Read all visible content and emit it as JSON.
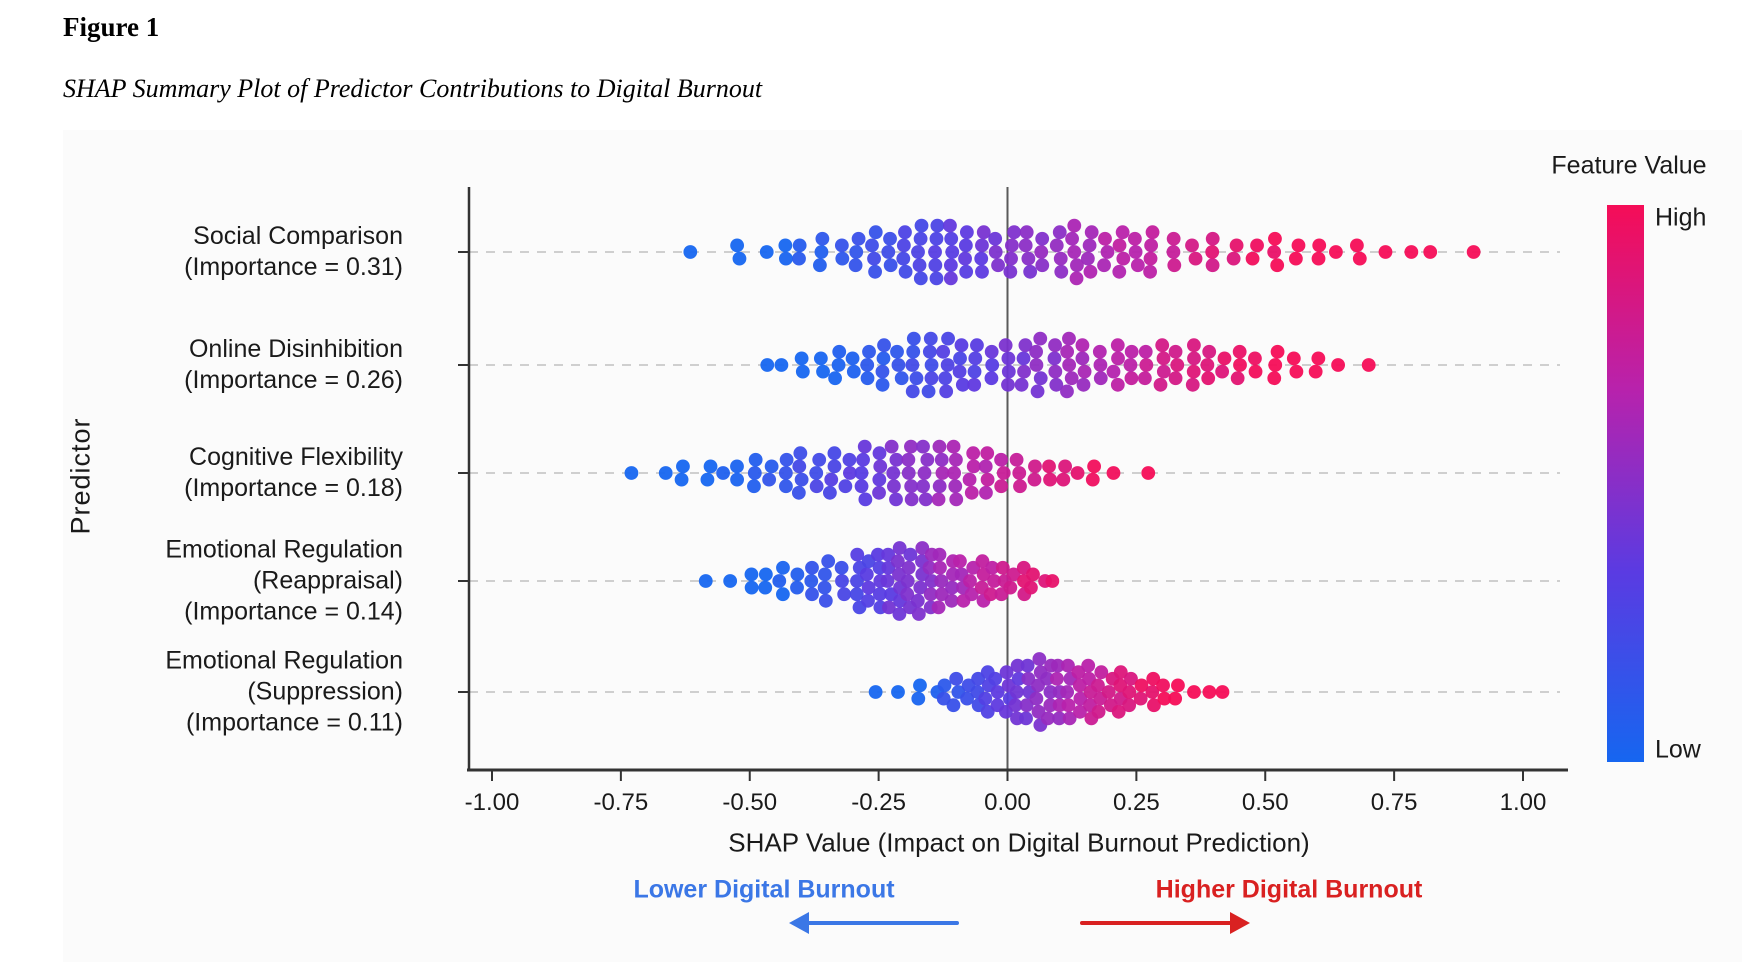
{
  "page": {
    "figure_label": "Figure 1",
    "figure_caption": "SHAP Summary Plot of Predictor Contributions to Digital Burnout"
  },
  "chart_data": {
    "type": "scatter",
    "subtype": "shap-beeswarm-summary",
    "title": "",
    "xlabel": "SHAP Value (Impact on Digital Burnout Prediction)",
    "ylabel": "Predictor",
    "xlim": [
      -1.05,
      1.07
    ],
    "x_ticks": [
      "-1.00",
      "-0.75",
      "-0.50",
      "-0.25",
      "0.00",
      "0.25",
      "0.50",
      "0.75",
      "1.00"
    ],
    "x_tick_values": [
      -1.0,
      -0.75,
      -0.5,
      -0.25,
      0.0,
      0.25,
      0.5,
      0.75,
      1.0
    ],
    "grid": "dashed horizontal line per predictor row",
    "zero_reference_line": 0.0,
    "colorbar": {
      "title": "Feature Value",
      "high_label": "High",
      "low_label": "Low",
      "high_color": "#F50D57",
      "mid_high_color": "#B822AC",
      "mid_low_color": "#5A3BE2",
      "low_color": "#1666F0"
    },
    "annotations": [
      {
        "text": "Lower Digital Burnout",
        "color": "#3B77E6",
        "direction": "left"
      },
      {
        "text": "Higher Digital Burnout",
        "color": "#D92121",
        "direction": "right"
      }
    ],
    "rows": [
      {
        "name": "Social Comparison",
        "importance": 0.31,
        "label_lines": [
          "Social Comparison",
          "(Importance = 0.31)"
        ],
        "shap_range": [
          -0.62,
          0.9
        ],
        "color_domain": [
          -0.45,
          0.55
        ],
        "columns": [
          [
            -0.62,
            1
          ],
          [
            -0.52,
            2
          ],
          [
            -0.47,
            1
          ],
          [
            -0.43,
            2
          ],
          [
            -0.4,
            2
          ],
          [
            -0.36,
            3
          ],
          [
            -0.32,
            2
          ],
          [
            -0.29,
            3
          ],
          [
            -0.26,
            4
          ],
          [
            -0.23,
            3
          ],
          [
            -0.2,
            4
          ],
          [
            -0.17,
            5
          ],
          [
            -0.14,
            5
          ],
          [
            -0.11,
            5
          ],
          [
            -0.08,
            4
          ],
          [
            -0.05,
            4
          ],
          [
            -0.02,
            3
          ],
          [
            0.01,
            4
          ],
          [
            0.04,
            4
          ],
          [
            0.07,
            3
          ],
          [
            0.1,
            4
          ],
          [
            0.13,
            5
          ],
          [
            0.16,
            4
          ],
          [
            0.19,
            3
          ],
          [
            0.22,
            4
          ],
          [
            0.25,
            3
          ],
          [
            0.28,
            4
          ],
          [
            0.32,
            3
          ],
          [
            0.36,
            2
          ],
          [
            0.4,
            3
          ],
          [
            0.44,
            2
          ],
          [
            0.48,
            2
          ],
          [
            0.52,
            3
          ],
          [
            0.56,
            2
          ],
          [
            0.6,
            2
          ],
          [
            0.64,
            1
          ],
          [
            0.68,
            2
          ],
          [
            0.73,
            1
          ],
          [
            0.78,
            1
          ],
          [
            0.82,
            1
          ],
          [
            0.9,
            1
          ]
        ]
      },
      {
        "name": "Online Disinhibition",
        "importance": 0.26,
        "label_lines": [
          "Online Disinhibition",
          "(Importance = 0.26)"
        ],
        "shap_range": [
          -0.47,
          0.7
        ],
        "color_domain": [
          -0.35,
          0.5
        ],
        "columns": [
          [
            -0.47,
            1
          ],
          [
            -0.44,
            1
          ],
          [
            -0.4,
            2
          ],
          [
            -0.36,
            2
          ],
          [
            -0.33,
            3
          ],
          [
            -0.3,
            2
          ],
          [
            -0.27,
            3
          ],
          [
            -0.24,
            4
          ],
          [
            -0.21,
            3
          ],
          [
            -0.18,
            5
          ],
          [
            -0.15,
            5
          ],
          [
            -0.12,
            5
          ],
          [
            -0.09,
            4
          ],
          [
            -0.06,
            4
          ],
          [
            -0.03,
            3
          ],
          [
            0.0,
            4
          ],
          [
            0.03,
            4
          ],
          [
            0.06,
            5
          ],
          [
            0.09,
            4
          ],
          [
            0.12,
            5
          ],
          [
            0.15,
            4
          ],
          [
            0.18,
            3
          ],
          [
            0.21,
            4
          ],
          [
            0.24,
            3
          ],
          [
            0.27,
            3
          ],
          [
            0.3,
            4
          ],
          [
            0.33,
            3
          ],
          [
            0.36,
            4
          ],
          [
            0.39,
            3
          ],
          [
            0.42,
            2
          ],
          [
            0.45,
            3
          ],
          [
            0.48,
            2
          ],
          [
            0.52,
            3
          ],
          [
            0.56,
            2
          ],
          [
            0.6,
            2
          ],
          [
            0.64,
            1
          ],
          [
            0.7,
            1
          ]
        ]
      },
      {
        "name": "Cognitive Flexibility",
        "importance": 0.18,
        "label_lines": [
          "Cognitive Flexibility",
          "(Importance = 0.18)"
        ],
        "shap_range": [
          -0.73,
          0.27
        ],
        "color_domain": [
          -0.55,
          0.2
        ],
        "columns": [
          [
            -0.73,
            1
          ],
          [
            -0.66,
            1
          ],
          [
            -0.63,
            2
          ],
          [
            -0.58,
            2
          ],
          [
            -0.55,
            1
          ],
          [
            -0.52,
            2
          ],
          [
            -0.49,
            3
          ],
          [
            -0.46,
            2
          ],
          [
            -0.43,
            3
          ],
          [
            -0.4,
            4
          ],
          [
            -0.37,
            3
          ],
          [
            -0.34,
            4
          ],
          [
            -0.31,
            3
          ],
          [
            -0.28,
            5
          ],
          [
            -0.25,
            4
          ],
          [
            -0.22,
            5
          ],
          [
            -0.19,
            5
          ],
          [
            -0.16,
            5
          ],
          [
            -0.13,
            5
          ],
          [
            -0.1,
            5
          ],
          [
            -0.07,
            4
          ],
          [
            -0.04,
            4
          ],
          [
            -0.01,
            3
          ],
          [
            0.02,
            3
          ],
          [
            0.05,
            2
          ],
          [
            0.08,
            2
          ],
          [
            0.11,
            2
          ],
          [
            0.14,
            1
          ],
          [
            0.17,
            2
          ],
          [
            0.21,
            1
          ],
          [
            0.27,
            1
          ]
        ]
      },
      {
        "name": "Emotional Regulation (Reappraisal)",
        "importance": 0.14,
        "label_lines": [
          "Emotional Regulation",
          "(Reappraisal)",
          "(Importance = 0.14)"
        ],
        "shap_range": [
          -0.59,
          0.09
        ],
        "color_domain": [
          -0.45,
          0.12
        ],
        "columns": [
          [
            -0.59,
            1
          ],
          [
            -0.54,
            1
          ],
          [
            -0.5,
            2
          ],
          [
            -0.47,
            2
          ],
          [
            -0.44,
            3
          ],
          [
            -0.41,
            2
          ],
          [
            -0.38,
            3
          ],
          [
            -0.35,
            4
          ],
          [
            -0.32,
            3
          ],
          [
            -0.29,
            5
          ],
          [
            -0.27,
            4
          ],
          [
            -0.25,
            5
          ],
          [
            -0.23,
            5
          ],
          [
            -0.21,
            6
          ],
          [
            -0.19,
            5
          ],
          [
            -0.17,
            6
          ],
          [
            -0.15,
            5
          ],
          [
            -0.13,
            5
          ],
          [
            -0.11,
            4
          ],
          [
            -0.09,
            4
          ],
          [
            -0.07,
            3
          ],
          [
            -0.05,
            4
          ],
          [
            -0.03,
            3
          ],
          [
            -0.01,
            3
          ],
          [
            0.01,
            2
          ],
          [
            0.03,
            3
          ],
          [
            0.05,
            2
          ],
          [
            0.07,
            1
          ],
          [
            0.09,
            1
          ]
        ]
      },
      {
        "name": "Emotional Regulation (Suppression)",
        "importance": 0.11,
        "label_lines": [
          "Emotional Regulation",
          "(Suppression)",
          "(Importance = 0.11)"
        ],
        "shap_range": [
          -0.26,
          0.42
        ],
        "color_domain": [
          -0.18,
          0.3
        ],
        "columns": [
          [
            -0.26,
            1
          ],
          [
            -0.21,
            1
          ],
          [
            -0.17,
            2
          ],
          [
            -0.14,
            1
          ],
          [
            -0.12,
            2
          ],
          [
            -0.1,
            3
          ],
          [
            -0.08,
            2
          ],
          [
            -0.06,
            3
          ],
          [
            -0.04,
            4
          ],
          [
            -0.02,
            3
          ],
          [
            0.0,
            4
          ],
          [
            0.02,
            5
          ],
          [
            0.04,
            5
          ],
          [
            0.06,
            6
          ],
          [
            0.08,
            5
          ],
          [
            0.1,
            5
          ],
          [
            0.12,
            5
          ],
          [
            0.14,
            4
          ],
          [
            0.16,
            5
          ],
          [
            0.18,
            4
          ],
          [
            0.2,
            3
          ],
          [
            0.22,
            4
          ],
          [
            0.24,
            3
          ],
          [
            0.26,
            2
          ],
          [
            0.28,
            3
          ],
          [
            0.3,
            2
          ],
          [
            0.33,
            2
          ],
          [
            0.36,
            1
          ],
          [
            0.39,
            1
          ],
          [
            0.42,
            1
          ]
        ]
      }
    ]
  }
}
